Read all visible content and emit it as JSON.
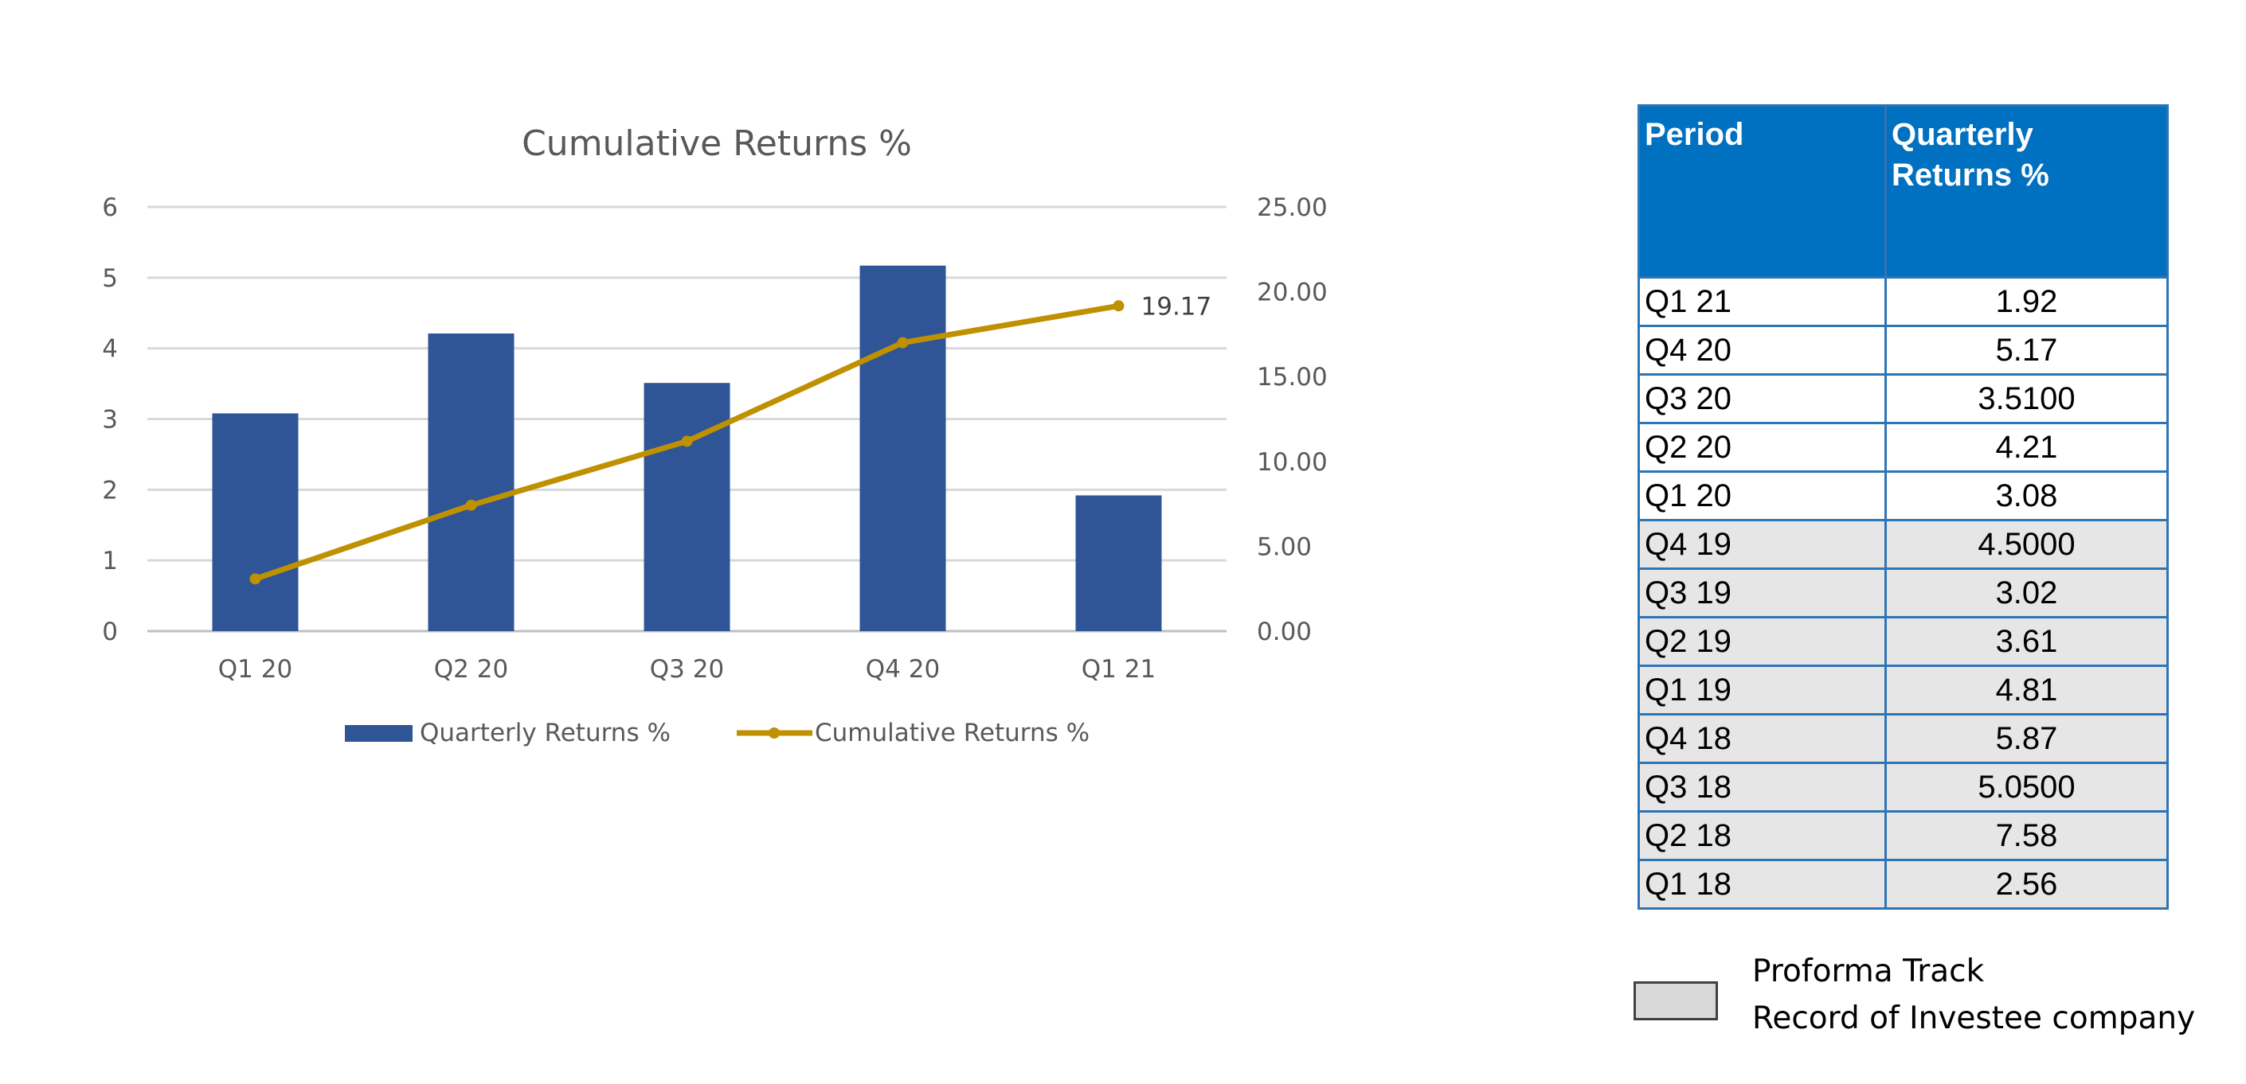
{
  "chart_data": {
    "type": "bar+line",
    "title": "Cumulative Returns %",
    "categories": [
      "Q1 20",
      "Q2 20",
      "Q3 20",
      "Q4 20",
      "Q1 21"
    ],
    "series": [
      {
        "name": "Quarterly Returns %",
        "type": "bar",
        "axis": "left",
        "color": "#2f5597",
        "values": [
          3.08,
          4.21,
          3.51,
          5.17,
          1.92
        ]
      },
      {
        "name": "Cumulative Returns %",
        "type": "line",
        "axis": "right",
        "color": "#bf9000",
        "values": [
          3.08,
          7.42,
          11.19,
          17.0,
          19.17
        ]
      }
    ],
    "left_axis": {
      "ylim": [
        0,
        6
      ],
      "ticks": [
        "0",
        "1",
        "2",
        "3",
        "4",
        "5",
        "6"
      ]
    },
    "right_axis": {
      "ylim": [
        0,
        25
      ],
      "ticks": [
        "0.00",
        "5.00",
        "10.00",
        "15.00",
        "20.00",
        "25.00"
      ]
    },
    "data_labels": [
      {
        "series": "Cumulative Returns %",
        "category": "Q1 21",
        "text": "19.17"
      }
    ],
    "grid": true,
    "legend": "bottom"
  },
  "table": {
    "headers": [
      "Period",
      "Quarterly Returns %"
    ],
    "rows": [
      {
        "period": "Q1 21",
        "value": "1.92",
        "proforma": false
      },
      {
        "period": "Q4 20",
        "value": "5.17",
        "proforma": false
      },
      {
        "period": "Q3 20",
        "value": "3.5100",
        "proforma": false
      },
      {
        "period": "Q2 20",
        "value": "4.21",
        "proforma": false
      },
      {
        "period": "Q1 20",
        "value": "3.08",
        "proforma": false
      },
      {
        "period": "Q4 19",
        "value": "4.5000",
        "proforma": true
      },
      {
        "period": "Q3 19",
        "value": "3.02",
        "proforma": true
      },
      {
        "period": "Q2 19",
        "value": "3.61",
        "proforma": true
      },
      {
        "period": "Q1 19",
        "value": "4.81",
        "proforma": true
      },
      {
        "period": "Q4 18",
        "value": "5.87",
        "proforma": true
      },
      {
        "period": "Q3 18",
        "value": "5.0500",
        "proforma": true
      },
      {
        "period": "Q2 18",
        "value": "7.58",
        "proforma": true
      },
      {
        "period": "Q1 18",
        "value": "2.56",
        "proforma": true
      }
    ],
    "header_color": "#0070c0",
    "proforma_color": "#e7e6e6"
  },
  "note": {
    "line1": "Proforma Track",
    "line2": "Record of Investee company"
  }
}
